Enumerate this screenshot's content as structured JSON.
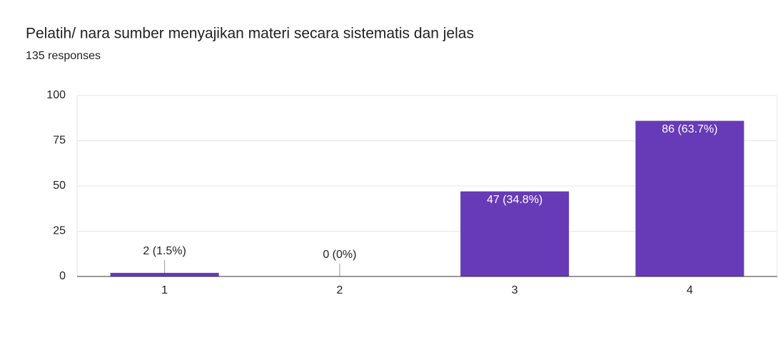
{
  "chart_data": {
    "type": "bar",
    "title": "Pelatih/ nara sumber menyajikan materi secara sistematis dan jelas",
    "subtitle": "135 responses",
    "categories": [
      "1",
      "2",
      "3",
      "4"
    ],
    "values": [
      2,
      0,
      47,
      86
    ],
    "value_labels": [
      "2 (1.5%)",
      "0 (0%)",
      "47 (34.8%)",
      "86 (63.7%)"
    ],
    "color": "#673ab7",
    "ylim": [
      0,
      100
    ],
    "yticks": [
      0,
      25,
      50,
      75,
      100
    ],
    "grid": true
  }
}
